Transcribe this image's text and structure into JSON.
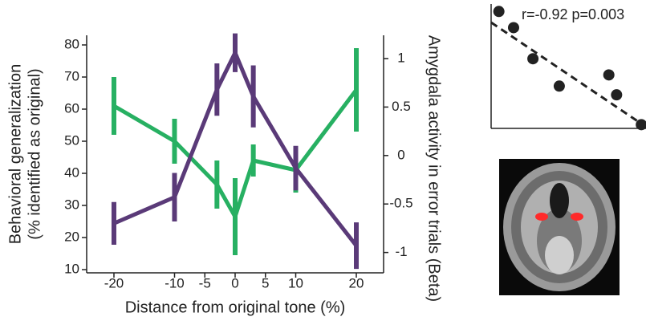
{
  "chart_data": [
    {
      "type": "line",
      "x_label": "Distance from original tone (%)",
      "y_label": [
        "Behavioral generalization",
        "(% identified as original)"
      ],
      "y2_label": "Amygdala activity in error trials (Beta)",
      "x": [
        -20,
        -10,
        -3,
        0,
        3,
        10,
        20
      ],
      "xlim": [
        -24.5,
        24.5
      ],
      "xticks": [
        -20,
        -10,
        -5,
        0,
        5,
        10,
        20
      ],
      "ylim": [
        9,
        83
      ],
      "yticks": [
        10,
        20,
        30,
        40,
        50,
        60,
        70,
        80
      ],
      "y2lim": [
        -1.21,
        1.24
      ],
      "y2ticks": [
        -1,
        -0.5,
        0,
        0.5,
        1
      ],
      "series": [
        {
          "color": "#27b062",
          "values": [
            61,
            50,
            36.5,
            26.5,
            44,
            41,
            66
          ],
          "errors": [
            9,
            7,
            7.5,
            12,
            5,
            7,
            13
          ]
        },
        {
          "color": "#5a3a78",
          "axis": "y2",
          "values": [
            -0.7,
            -0.43,
            0.68,
            1.06,
            0.61,
            -0.13,
            -0.93
          ],
          "errors": [
            0.22,
            0.25,
            0.27,
            0.2,
            0.32,
            0.23,
            0.24
          ]
        }
      ]
    },
    {
      "type": "scatter",
      "annotation": "r=-0.92 p=0.003",
      "xlim": [
        0,
        100
      ],
      "ylim": [
        0,
        100
      ],
      "color": "#222222",
      "x": [
        5,
        14.5,
        27,
        44,
        76,
        81,
        97
      ],
      "values": [
        94,
        81,
        56,
        34,
        43,
        27,
        3
      ]
    }
  ]
}
